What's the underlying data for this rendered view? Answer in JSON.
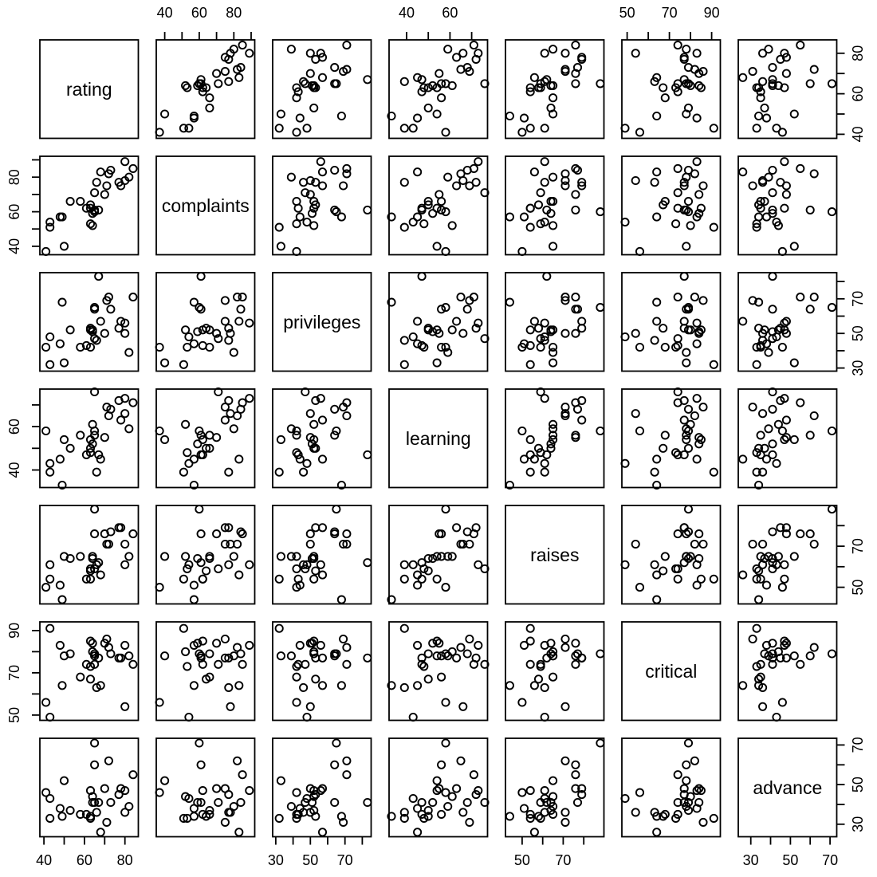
{
  "figure": {
    "kind": "R pairs scatterplot matrix",
    "background_color": "#ffffff"
  },
  "chart_data": {
    "type": "scatter",
    "subtype": "scatterplot_matrix",
    "title": "",
    "grid": false,
    "point_count": 30,
    "style": {
      "point_color": "#000000",
      "box_color": "#000000",
      "background": "#ffffff",
      "marker": "open-circle"
    },
    "variables": [
      {
        "name": "rating",
        "axis_min": 38.0,
        "axis_max": 86.6,
        "ticks": [
          40,
          50,
          60,
          70,
          80
        ],
        "labeled_ticks": [
          40,
          60,
          80
        ]
      },
      {
        "name": "complaints",
        "axis_min": 35.1,
        "axis_max": 92.1,
        "ticks": [
          40,
          50,
          60,
          70,
          80,
          90
        ],
        "labeled_ticks": [
          40,
          60,
          80
        ]
      },
      {
        "name": "privileges",
        "axis_min": 28.2,
        "axis_max": 85.1,
        "ticks": [
          30,
          40,
          50,
          60,
          70,
          80
        ],
        "labeled_ticks": [
          30,
          50,
          70
        ]
      },
      {
        "name": "learning",
        "axis_min": 31.9,
        "axis_max": 77.3,
        "ticks": [
          40,
          50,
          60,
          70
        ],
        "labeled_ticks": [
          40,
          60
        ]
      },
      {
        "name": "raises",
        "axis_min": 41.9,
        "axis_max": 89.8,
        "ticks": [
          50,
          60,
          70,
          80
        ],
        "labeled_ticks": [
          50,
          70
        ]
      },
      {
        "name": "critical",
        "axis_min": 47.5,
        "axis_max": 94.1,
        "ticks": [
          50,
          60,
          70,
          80,
          90
        ],
        "labeled_ticks": [
          50,
          70,
          90
        ]
      },
      {
        "name": "advance",
        "axis_min": 23.7,
        "axis_max": 73.4,
        "ticks": [
          30,
          40,
          50,
          60,
          70
        ],
        "labeled_ticks": [
          30,
          50,
          70
        ]
      }
    ],
    "axes_layout": {
      "top_columns": [
        2,
        4,
        6
      ],
      "bottom_columns": [
        1,
        3,
        5,
        7
      ],
      "left_rows": [
        2,
        4,
        6
      ],
      "right_rows": [
        1,
        3,
        5,
        7
      ]
    },
    "observations": [
      [
        41,
        37,
        42,
        58,
        50,
        56,
        46
      ],
      [
        43,
        51,
        32,
        39,
        54,
        91,
        33
      ],
      [
        43,
        54,
        48,
        43,
        61,
        49,
        43
      ],
      [
        48,
        57,
        44,
        45,
        51,
        83,
        38
      ],
      [
        49,
        57,
        68,
        33,
        44,
        64,
        34
      ],
      [
        50,
        40,
        33,
        54,
        65,
        78,
        52
      ],
      [
        53,
        66,
        52,
        50,
        64,
        79,
        37
      ],
      [
        58,
        66,
        42,
        56,
        65,
        68,
        35
      ],
      [
        61,
        62,
        43,
        47,
        54,
        74,
        35
      ],
      [
        63,
        53,
        42,
        48,
        59,
        73,
        33
      ],
      [
        63,
        62,
        52,
        54,
        54,
        85,
        47
      ],
      [
        63,
        64,
        53,
        50,
        58,
        67,
        34
      ],
      [
        64,
        52,
        52,
        61,
        65,
        80,
        44
      ],
      [
        64,
        59,
        51,
        52,
        64,
        84,
        41
      ],
      [
        65,
        61,
        64,
        56,
        76,
        78,
        60
      ],
      [
        65,
        60,
        65,
        58,
        88,
        79,
        71
      ],
      [
        65,
        71,
        47,
        76,
        59,
        74,
        41
      ],
      [
        66,
        77,
        46,
        39,
        61,
        63,
        36
      ],
      [
        67,
        61,
        83,
        47,
        62,
        77,
        41
      ],
      [
        68,
        83,
        57,
        45,
        56,
        64,
        26
      ],
      [
        70,
        70,
        50,
        55,
        76,
        84,
        48
      ],
      [
        71,
        75,
        69,
        69,
        71,
        86,
        31
      ],
      [
        72,
        82,
        71,
        65,
        71,
        82,
        62
      ],
      [
        73,
        84,
        64,
        68,
        77,
        79,
        41
      ],
      [
        77,
        77,
        53,
        72,
        79,
        77,
        45
      ],
      [
        78,
        75,
        57,
        63,
        79,
        77,
        48
      ],
      [
        80,
        78,
        50,
        66,
        71,
        54,
        36
      ],
      [
        80,
        89,
        56,
        73,
        61,
        83,
        47
      ],
      [
        82,
        80,
        39,
        59,
        65,
        78,
        39
      ],
      [
        84,
        85,
        71,
        71,
        76,
        74,
        55
      ]
    ]
  }
}
